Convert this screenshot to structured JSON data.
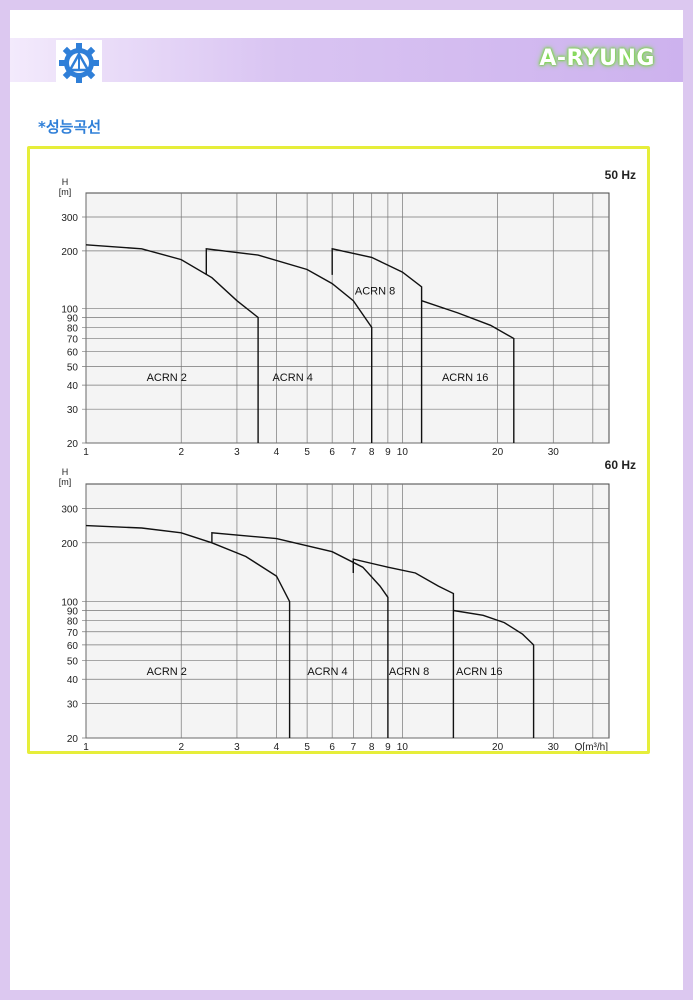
{
  "header": {
    "brand": "A-RYUNG",
    "logo_icon": "gear-triangle-logo-icon",
    "accent": "#2f7fd8"
  },
  "section": {
    "title": "*성능곡선"
  },
  "chart_data": [
    {
      "type": "line",
      "title": "50 Hz",
      "ylabel": "H [m]",
      "xlabel": "",
      "x_scale": "log",
      "y_scale": "log",
      "xlim": [
        1,
        45
      ],
      "ylim": [
        20,
        400
      ],
      "x_ticks": [
        1,
        2,
        3,
        4,
        5,
        6,
        7,
        8,
        9,
        10,
        20,
        30
      ],
      "y_ticks": [
        20,
        30,
        40,
        50,
        60,
        70,
        80,
        90,
        100,
        200,
        300
      ],
      "series": [
        {
          "name": "ACRN 2",
          "x": [
            1,
            1.5,
            2,
            2.5,
            3,
            3.5,
            3.5
          ],
          "y": [
            215,
            205,
            180,
            145,
            110,
            90,
            20
          ],
          "label_at": [
            1.8,
            44
          ]
        },
        {
          "name": "ACRN 4",
          "x": [
            2.4,
            2.4,
            3.5,
            5,
            6,
            7,
            8,
            8
          ],
          "y": [
            150,
            205,
            190,
            160,
            135,
            110,
            80,
            20
          ],
          "label_at": [
            4.5,
            44
          ]
        },
        {
          "name": "ACRN 8",
          "x": [
            6,
            6,
            8,
            10,
            11.5,
            11.5
          ],
          "y": [
            150,
            205,
            185,
            155,
            130,
            20
          ],
          "label_at": [
            8.2,
            124
          ]
        },
        {
          "name": "ACRN 16",
          "x": [
            11.5,
            15,
            19,
            22.5,
            22.5
          ],
          "y": [
            110,
            95,
            82,
            70,
            20
          ],
          "label_at": [
            15.8,
            44
          ]
        }
      ]
    },
    {
      "type": "line",
      "title": "60 Hz",
      "ylabel": "H [m]",
      "xlabel": "Q[m³/h]",
      "x_scale": "log",
      "y_scale": "log",
      "xlim": [
        1,
        45
      ],
      "ylim": [
        20,
        400
      ],
      "x_ticks": [
        1,
        2,
        3,
        4,
        5,
        6,
        7,
        8,
        9,
        10,
        20,
        30
      ],
      "y_ticks": [
        20,
        30,
        40,
        50,
        60,
        70,
        80,
        90,
        100,
        200,
        300
      ],
      "series": [
        {
          "name": "ACRN 2",
          "x": [
            1,
            1.5,
            2,
            2.5,
            3.2,
            4,
            4.4,
            4.4
          ],
          "y": [
            245,
            238,
            225,
            200,
            170,
            135,
            100,
            20
          ],
          "label_at": [
            1.8,
            44
          ]
        },
        {
          "name": "ACRN 4",
          "x": [
            2.5,
            2.5,
            4,
            6,
            7.5,
            8.5,
            9,
            9
          ],
          "y": [
            200,
            225,
            210,
            180,
            150,
            120,
            105,
            20
          ],
          "label_at": [
            5.8,
            44
          ]
        },
        {
          "name": "ACRN 8",
          "x": [
            7,
            7,
            9,
            11,
            13,
            14.5,
            14.5
          ],
          "y": [
            140,
            165,
            150,
            140,
            120,
            110,
            20
          ],
          "label_at": [
            10.5,
            44
          ]
        },
        {
          "name": "ACRN 16",
          "x": [
            14.5,
            18,
            21,
            24,
            26,
            26
          ],
          "y": [
            90,
            85,
            78,
            68,
            60,
            20
          ],
          "label_at": [
            17.5,
            44
          ]
        }
      ]
    }
  ]
}
